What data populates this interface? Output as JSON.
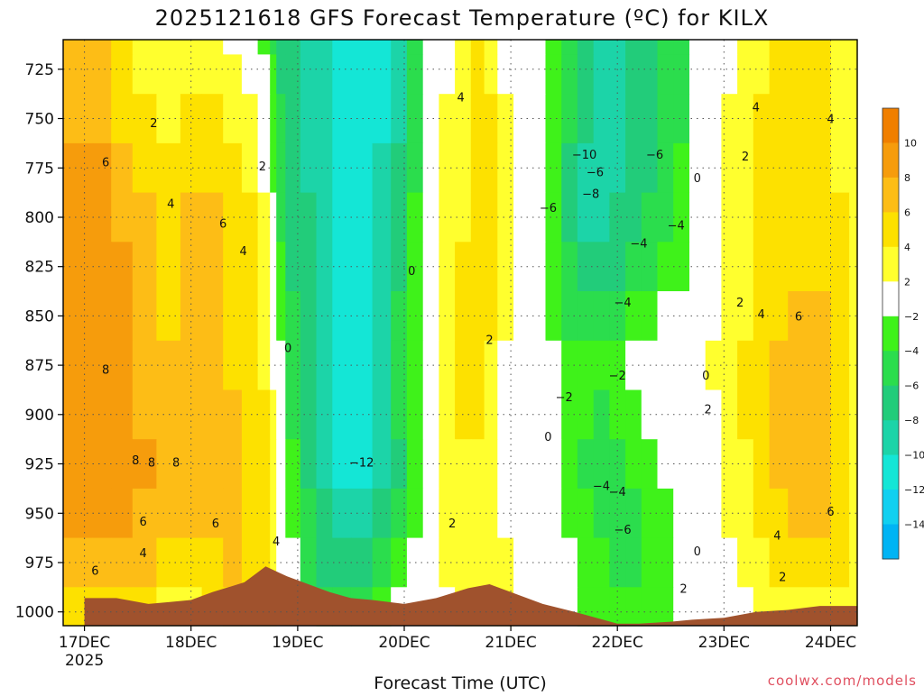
{
  "chart_data": {
    "type": "heatmap",
    "title": "2025121618 GFS Forecast Temperature (ºC) for KILX",
    "xlabel": "Forecast Time (UTC)",
    "ylabel": "",
    "x_ticks": [
      "17DEC",
      "18DEC",
      "19DEC",
      "20DEC",
      "21DEC",
      "22DEC",
      "23DEC",
      "24DEC"
    ],
    "x_year_label": "2025",
    "y_ticks": [
      725,
      750,
      775,
      800,
      825,
      850,
      875,
      900,
      925,
      950,
      975,
      1000
    ],
    "ylim": [
      1007,
      710
    ],
    "y_unit": "hPa",
    "grid": true,
    "colorbar": {
      "ticks": [
        "10",
        "8",
        "6",
        "4",
        "2",
        "−2",
        "−4",
        "−6",
        "−8",
        "−10",
        "−12",
        "−14"
      ],
      "colors": [
        "#f07f00",
        "#f69c0c",
        "#fdbd16",
        "#fde100",
        "#ffff2e",
        "#ffffff",
        "#3ff21a",
        "#2bdd4d",
        "#22cc7a",
        "#1cd4a8",
        "#14e6d6",
        "#11d0f0",
        "#00b4f4"
      ],
      "placement": "right"
    },
    "contour_labels": [
      {
        "t": "2",
        "x": 17.65,
        "p": 752
      },
      {
        "t": "6",
        "x": 17.2,
        "p": 772
      },
      {
        "t": "4",
        "x": 17.81,
        "p": 793
      },
      {
        "t": "6",
        "x": 18.3,
        "p": 803
      },
      {
        "t": "4",
        "x": 18.49,
        "p": 817
      },
      {
        "t": "2",
        "x": 18.67,
        "p": 774
      },
      {
        "t": "8",
        "x": 17.2,
        "p": 877
      },
      {
        "t": "8",
        "x": 17.48,
        "p": 923
      },
      {
        "t": "8",
        "x": 17.63,
        "p": 924
      },
      {
        "t": "8",
        "x": 17.86,
        "p": 924
      },
      {
        "t": "6",
        "x": 17.55,
        "p": 954
      },
      {
        "t": "6",
        "x": 18.23,
        "p": 955
      },
      {
        "t": "4",
        "x": 17.55,
        "p": 970
      },
      {
        "t": "6",
        "x": 17.1,
        "p": 979
      },
      {
        "t": "4",
        "x": 18.8,
        "p": 964
      },
      {
        "t": "0",
        "x": 18.91,
        "p": 866
      },
      {
        "t": "−12",
        "x": 19.6,
        "p": 924
      },
      {
        "t": "0",
        "x": 20.07,
        "p": 827
      },
      {
        "t": "4",
        "x": 20.53,
        "p": 739
      },
      {
        "t": "2",
        "x": 20.45,
        "p": 955
      },
      {
        "t": "2",
        "x": 20.8,
        "p": 862
      },
      {
        "t": "0",
        "x": 21.35,
        "p": 911
      },
      {
        "t": "−2",
        "x": 21.5,
        "p": 891
      },
      {
        "t": "−10",
        "x": 21.69,
        "p": 768
      },
      {
        "t": "−6",
        "x": 21.79,
        "p": 777
      },
      {
        "t": "−8",
        "x": 21.75,
        "p": 788
      },
      {
        "t": "−6",
        "x": 21.35,
        "p": 795
      },
      {
        "t": "−6",
        "x": 22.35,
        "p": 768
      },
      {
        "t": "−4",
        "x": 22.55,
        "p": 804
      },
      {
        "t": "−4",
        "x": 22.2,
        "p": 813
      },
      {
        "t": "−4",
        "x": 22.05,
        "p": 843
      },
      {
        "t": "−2",
        "x": 22.0,
        "p": 880
      },
      {
        "t": "−4",
        "x": 21.85,
        "p": 936
      },
      {
        "t": "−4",
        "x": 22.0,
        "p": 939
      },
      {
        "t": "−6",
        "x": 22.05,
        "p": 958
      },
      {
        "t": "0",
        "x": 22.75,
        "p": 780
      },
      {
        "t": "2",
        "x": 23.2,
        "p": 769
      },
      {
        "t": "2",
        "x": 23.15,
        "p": 843
      },
      {
        "t": "0",
        "x": 22.83,
        "p": 880
      },
      {
        "t": "2",
        "x": 22.85,
        "p": 897
      },
      {
        "t": "2",
        "x": 22.62,
        "p": 988
      },
      {
        "t": "0",
        "x": 22.75,
        "p": 969
      },
      {
        "t": "4",
        "x": 23.35,
        "p": 849
      },
      {
        "t": "4",
        "x": 23.3,
        "p": 744
      },
      {
        "t": "4",
        "x": 24.0,
        "p": 750
      },
      {
        "t": "6",
        "x": 23.7,
        "p": 850
      },
      {
        "t": "6",
        "x": 24.0,
        "p": 949
      },
      {
        "t": "4",
        "x": 23.5,
        "p": 961
      },
      {
        "t": "2",
        "x": 23.55,
        "p": 982
      }
    ],
    "temperature_field": {
      "x": [
        17.0,
        17.15,
        17.35,
        17.55,
        17.8,
        18.0,
        18.2,
        18.4,
        18.55,
        18.7,
        18.78,
        18.82,
        18.95,
        19.1,
        19.25,
        19.4,
        19.6,
        19.8,
        19.95,
        20.1,
        20.25,
        20.4,
        20.55,
        20.7,
        20.8,
        20.95,
        21.1,
        21.25,
        21.4,
        21.55,
        21.7,
        21.85,
        22.0,
        22.15,
        22.3,
        22.45,
        22.6,
        22.75,
        22.9,
        23.05,
        23.2,
        23.35,
        23.5,
        23.7,
        23.9,
        24.1,
        24.25
      ],
      "p": [
        710,
        725,
        750,
        775,
        800,
        825,
        850,
        875,
        900,
        925,
        950,
        975,
        1000,
        1007
      ],
      "values": [
        [
          6,
          7,
          4,
          3,
          2,
          3,
          3,
          1,
          -1,
          -3,
          -5,
          -7,
          -8,
          -9,
          -10,
          -12,
          -12,
          -11,
          -9,
          -6,
          -2,
          1,
          3,
          4,
          2,
          1,
          0,
          -1,
          -3,
          -5,
          -8,
          -10,
          -10,
          -8,
          -7,
          -6,
          -5,
          -2,
          0,
          1,
          2,
          3,
          4,
          4,
          4,
          3,
          2
        ],
        [
          7,
          7,
          4,
          3,
          2,
          3,
          3,
          2,
          1,
          -1,
          -4,
          -7,
          -8,
          -9,
          -10,
          -12,
          -12,
          -11,
          -9,
          -6,
          -2,
          1,
          3,
          5,
          3,
          1,
          0,
          -1,
          -3,
          -6,
          -8,
          -10,
          -10,
          -8,
          -7,
          -6,
          -5,
          -2,
          0,
          1,
          2,
          3,
          4,
          4,
          4,
          3,
          2
        ],
        [
          7,
          7,
          5,
          4,
          3,
          4,
          4,
          3,
          2,
          0,
          -3,
          -6,
          -8,
          -9,
          -10,
          -12,
          -12,
          -11,
          -9,
          -6,
          -1,
          2,
          3,
          5,
          4,
          2,
          0,
          -1,
          -3,
          -6,
          -8,
          -10,
          -10,
          -8,
          -7,
          -6,
          -5,
          -1,
          0,
          2,
          3,
          4,
          4,
          4,
          4,
          3,
          3
        ],
        [
          8,
          8,
          6,
          5,
          4,
          5,
          5,
          4,
          3,
          1,
          -3,
          -6,
          -8,
          -9,
          -10,
          -11,
          -11,
          -10,
          -8,
          -5,
          -1,
          2,
          3,
          5,
          4,
          2,
          0,
          -1,
          -4,
          -7,
          -9,
          -10,
          -9,
          -8,
          -7,
          -6,
          -4,
          -1,
          1,
          2,
          3,
          4,
          4,
          5,
          4,
          3,
          3
        ],
        [
          9,
          9,
          7,
          6,
          5,
          6,
          6,
          5,
          4,
          3,
          -2,
          -5,
          -7,
          -8,
          -9,
          -11,
          -11,
          -10,
          -7,
          -4,
          0,
          2,
          3,
          5,
          4,
          2,
          0,
          -1,
          -4,
          -7,
          -9,
          -9,
          -8,
          -7,
          -6,
          -5,
          -3,
          -1,
          1,
          2,
          3,
          4,
          4,
          5,
          5,
          4,
          3
        ],
        [
          9,
          9,
          8,
          6,
          5,
          6,
          6,
          5,
          4,
          3,
          -1,
          -4,
          -7,
          -8,
          -9,
          -11,
          -11,
          -9,
          -7,
          -3,
          0,
          2,
          4,
          5,
          4,
          2,
          0,
          -1,
          -3,
          -6,
          -8,
          -8,
          -7,
          -6,
          -5,
          -4,
          -3,
          -1,
          1,
          2,
          3,
          4,
          5,
          5,
          5,
          4,
          3
        ],
        [
          9,
          9,
          8,
          6,
          5,
          6,
          6,
          5,
          4,
          3,
          0,
          -3,
          -6,
          -8,
          -9,
          -12,
          -11,
          -9,
          -6,
          -3,
          0,
          2,
          4,
          5,
          4,
          2,
          0,
          -1,
          -3,
          -5,
          -6,
          -6,
          -5,
          -4,
          -3,
          -2,
          -1,
          0,
          1,
          2,
          3,
          4,
          5,
          6,
          6,
          5,
          3
        ],
        [
          9,
          9,
          8,
          7,
          6,
          6,
          6,
          5,
          4,
          3,
          1,
          -2,
          -6,
          -8,
          -10,
          -12,
          -11,
          -9,
          -6,
          -3,
          0,
          2,
          4,
          5,
          3,
          1,
          0,
          -1,
          -2,
          -3,
          -4,
          -4,
          -3,
          -2,
          -1,
          -1,
          0,
          1,
          2,
          3,
          4,
          5,
          6,
          6,
          6,
          5,
          3
        ],
        [
          9,
          9,
          8,
          7,
          6,
          6,
          7,
          6,
          5,
          4,
          2,
          -1,
          -5,
          -8,
          -10,
          -12,
          -12,
          -9,
          -6,
          -3,
          0,
          3,
          4,
          4,
          3,
          1,
          0,
          -1,
          -2,
          -3,
          -4,
          -5,
          -4,
          -3,
          -2,
          -1,
          -1,
          0,
          1,
          2,
          4,
          5,
          6,
          7,
          6,
          5,
          3
        ],
        [
          9,
          9,
          8,
          8,
          7,
          6,
          7,
          6,
          5,
          5,
          3,
          0,
          -4,
          -7,
          -9,
          -11,
          -12,
          -10,
          -7,
          -4,
          0,
          3,
          3,
          3,
          2,
          1,
          0,
          -1,
          -2,
          -3,
          -5,
          -5,
          -5,
          -4,
          -3,
          -2,
          -1,
          0,
          1,
          2,
          3,
          5,
          6,
          6,
          6,
          5,
          3
        ],
        [
          8,
          8,
          8,
          7,
          6,
          6,
          6,
          6,
          5,
          5,
          3,
          1,
          -3,
          -6,
          -8,
          -10,
          -10,
          -8,
          -6,
          -4,
          0,
          2,
          3,
          3,
          2,
          1,
          0,
          -1,
          -2,
          -3,
          -4,
          -5,
          -5,
          -5,
          -4,
          -3,
          -1,
          0,
          1,
          2,
          3,
          4,
          5,
          6,
          6,
          5,
          3
        ],
        [
          7,
          7,
          6,
          6,
          5,
          5,
          5,
          6,
          5,
          4,
          3,
          1,
          -2,
          -5,
          -7,
          -8,
          -8,
          -6,
          -4,
          -2,
          0,
          2,
          2,
          3,
          3,
          2,
          1,
          0,
          -1,
          -2,
          -3,
          -4,
          -5,
          -5,
          -4,
          -3,
          -2,
          -1,
          0,
          1,
          2,
          3,
          4,
          4,
          4,
          4,
          3
        ],
        [
          5,
          5,
          4,
          4,
          3,
          3,
          4,
          5,
          4,
          3,
          2,
          1,
          -1,
          -3,
          -5,
          -6,
          -6,
          -4,
          -2,
          -1,
          0,
          1,
          2,
          2,
          2,
          2,
          1,
          0,
          -1,
          -2,
          -3,
          -4,
          -4,
          -4,
          -3,
          -3,
          -2,
          -1,
          0,
          1,
          1,
          2,
          2,
          2,
          2,
          2,
          2
        ],
        [
          4,
          4,
          3,
          3,
          2,
          2,
          3,
          4,
          3,
          2,
          2,
          1,
          -1,
          -2,
          -4,
          -5,
          -5,
          -3,
          -2,
          -1,
          0,
          1,
          2,
          2,
          2,
          2,
          1,
          0,
          -1,
          -2,
          -3,
          -4,
          -4,
          -4,
          -3,
          -3,
          -2,
          -1,
          0,
          1,
          1,
          2,
          2,
          2,
          2,
          2,
          2
        ]
      ]
    },
    "terrain_pressure": {
      "x": [
        17.0,
        17.3,
        17.6,
        17.8,
        18.0,
        18.2,
        18.5,
        18.7,
        18.9,
        19.1,
        19.3,
        19.5,
        19.7,
        20.0,
        20.3,
        20.6,
        20.8,
        21.0,
        21.3,
        21.6,
        21.8,
        22.0,
        22.2,
        22.5,
        22.7,
        23.0,
        23.3,
        23.6,
        23.9,
        24.1,
        24.25
      ],
      "p": [
        993,
        993,
        996,
        995,
        994,
        990,
        985,
        977,
        982,
        986,
        990,
        993,
        994,
        996,
        993,
        988,
        986,
        990,
        996,
        1000,
        1003,
        1006,
        1006,
        1005,
        1004,
        1003,
        1000,
        999,
        997,
        997,
        997
      ]
    }
  },
  "credit": "coolwx.com/models"
}
